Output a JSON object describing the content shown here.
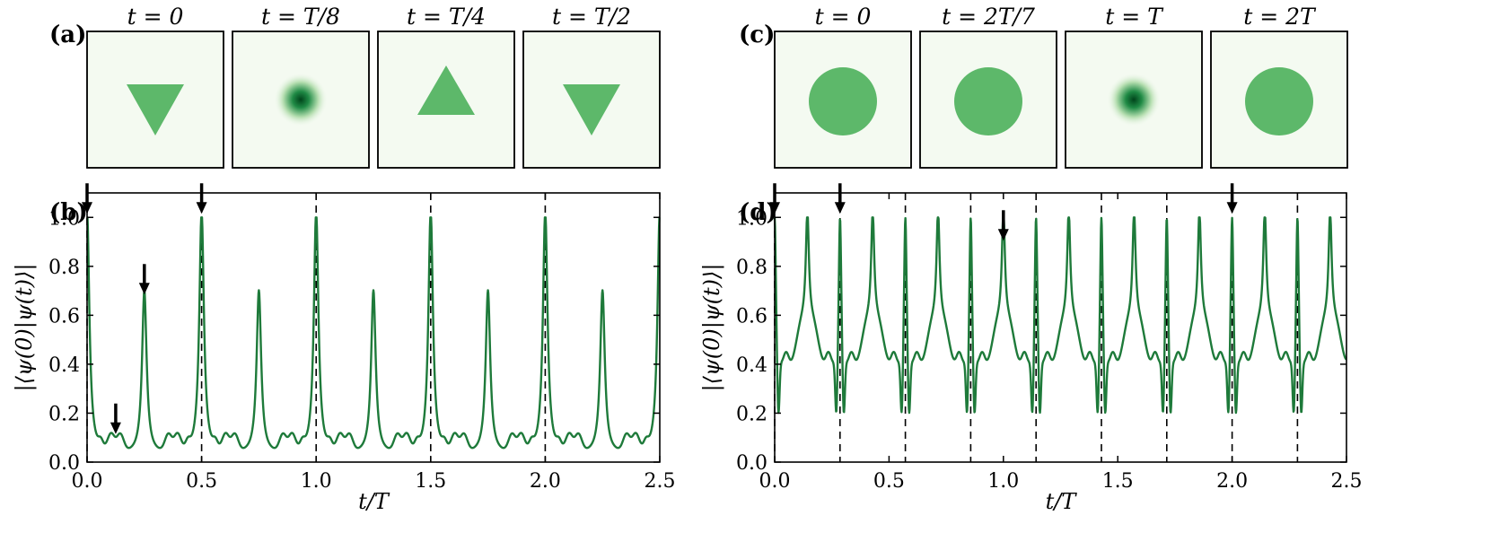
{
  "figure": {
    "left": {
      "snapshots_label": "(a)",
      "snapshots": [
        {
          "title": "t = 0",
          "shape": "triangle-down",
          "blur": 0
        },
        {
          "title": "t = T/8",
          "shape": "spot",
          "blur": 1
        },
        {
          "title": "t = T/4",
          "shape": "triangle-up",
          "blur": 0
        },
        {
          "title": "t = T/2",
          "shape": "triangle-down",
          "blur": 0
        }
      ],
      "plot_label": "(b)"
    },
    "right": {
      "snapshots_label": "(c)",
      "snapshots": [
        {
          "title": "t = 0",
          "shape": "disk",
          "blur": 0
        },
        {
          "title": "t = 2T/7",
          "shape": "disk",
          "blur": 0
        },
        {
          "title": "t = T",
          "shape": "spot",
          "blur": 1
        },
        {
          "title": "t = 2T",
          "shape": "disk",
          "blur": 0
        }
      ],
      "plot_label": "(d)"
    },
    "colors": {
      "curve": "#1e7a3a",
      "snapshot_bg": "#f4faf1",
      "snapshot_fill": "#5db86a",
      "snapshot_spot": "#00441b"
    }
  },
  "chart_data": [
    {
      "type": "line",
      "panel": "(b)",
      "xlabel": "t/T",
      "ylabel": "|⟨ψ(0)|ψ(t)⟩|",
      "xlim": [
        0,
        2.5
      ],
      "ylim": [
        0,
        1.1
      ],
      "xticks": [
        0.0,
        0.5,
        1.0,
        1.5,
        2.0,
        2.5
      ],
      "xtick_labels": [
        "0.0",
        "0.5",
        "1.0",
        "1.5",
        "2.0",
        "2.5"
      ],
      "yticks": [
        0.0,
        0.2,
        0.4,
        0.6,
        0.8,
        1.0
      ],
      "ytick_labels": [
        "0.0",
        "0.2",
        "0.4",
        "0.6",
        "0.8",
        "1.0"
      ],
      "dashed_lines_x": [
        0,
        0.5,
        1.0,
        1.5,
        2.0
      ],
      "arrows": [
        {
          "x": 0,
          "y": 1.0
        },
        {
          "x": 0.125,
          "y": 0.1
        },
        {
          "x": 0.25,
          "y": 0.67
        },
        {
          "x": 0.5,
          "y": 1.0
        }
      ],
      "series": [
        {
          "name": "fidelity",
          "period": 0.5,
          "baseline": 0.03,
          "peaks": [
            {
              "center": 0,
              "height": 1.0,
              "width": 0.012
            },
            {
              "center": 0.25,
              "height": 0.67,
              "width": 0.012
            }
          ],
          "bumps": [
            {
              "center": 0.105,
              "height": 0.07,
              "width": 0.015
            },
            {
              "center": 0.145,
              "height": 0.07,
              "width": 0.015
            },
            {
              "center": 0.355,
              "height": 0.07,
              "width": 0.015
            },
            {
              "center": 0.395,
              "height": 0.07,
              "width": 0.015
            },
            {
              "center": 0.06,
              "height": 0.03,
              "width": 0.01
            },
            {
              "center": 0.44,
              "height": 0.03,
              "width": 0.01
            }
          ]
        }
      ]
    },
    {
      "type": "line",
      "panel": "(d)",
      "xlabel": "t/T",
      "ylabel": "|⟨ψ(0)|ψ(t)⟩|",
      "xlim": [
        0,
        2.5
      ],
      "ylim": [
        0,
        1.1
      ],
      "xticks": [
        0.0,
        0.5,
        1.0,
        1.5,
        2.0,
        2.5
      ],
      "xtick_labels": [
        "0.0",
        "0.5",
        "1.0",
        "1.5",
        "2.0",
        "2.5"
      ],
      "yticks": [
        0.0,
        0.2,
        0.4,
        0.6,
        0.8,
        1.0
      ],
      "ytick_labels": [
        "0.0",
        "0.2",
        "0.4",
        "0.6",
        "0.8",
        "1.0"
      ],
      "dashed_lines_x": [
        0,
        0.2857,
        0.5714,
        0.8571,
        1.1429,
        1.4286,
        1.7143,
        2.0,
        2.2857
      ],
      "arrows": [
        {
          "x": 0,
          "y": 1.0
        },
        {
          "x": 0.2857,
          "y": 1.0
        },
        {
          "x": 1.0,
          "y": 0.89
        },
        {
          "x": 2.0,
          "y": 1.0
        }
      ],
      "series": [
        {
          "name": "fidelity",
          "period": 0.2857,
          "baseline": 0.36,
          "peaks": [
            {
              "center": 0,
              "height": 0.64,
              "width": 0.007
            },
            {
              "center": 0.1429,
              "height": 0.45,
              "width": 0.008
            }
          ],
          "bumps": [
            {
              "center": 0.118,
              "height": 0.18,
              "width": 0.025
            },
            {
              "center": 0.168,
              "height": 0.18,
              "width": 0.025
            },
            {
              "center": 0.235,
              "height": 0.07,
              "width": 0.012
            },
            {
              "center": 0.05,
              "height": 0.07,
              "width": 0.012
            },
            {
              "center": 0.016,
              "height": -0.26,
              "width": 0.005
            },
            {
              "center": 0.27,
              "height": -0.26,
              "width": 0.005
            }
          ]
        }
      ]
    }
  ]
}
